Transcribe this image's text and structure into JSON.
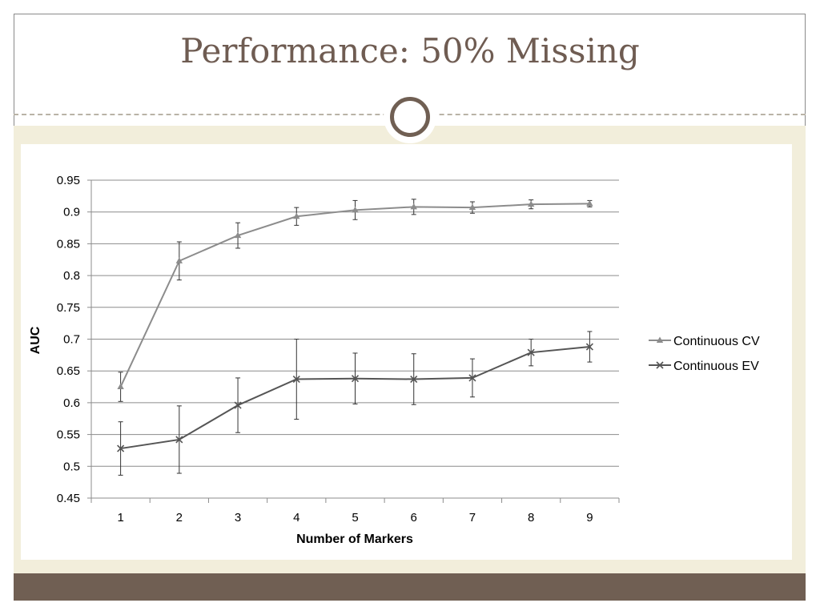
{
  "slide": {
    "title": "Performance: 50% Missing",
    "colors": {
      "brown": "#705f53",
      "band": "#f2eedb",
      "title": "#6f5c52"
    },
    "divider_icon": "circle-ornament-icon"
  },
  "chart_data": {
    "type": "line",
    "title": "",
    "xlabel": "Number of Markers",
    "ylabel": "AUC",
    "categories": [
      "1",
      "2",
      "3",
      "4",
      "5",
      "6",
      "7",
      "8",
      "9"
    ],
    "ylim": [
      0.45,
      0.95
    ],
    "yticks": [
      "0.45",
      "0.5",
      "0.55",
      "0.6",
      "0.65",
      "0.7",
      "0.75",
      "0.8",
      "0.85",
      "0.9",
      "0.95"
    ],
    "grid": true,
    "legend_position": "right",
    "series": [
      {
        "name": "Continuous CV",
        "marker": "triangle",
        "color": "#8c8c8c",
        "values": [
          0.625,
          0.823,
          0.863,
          0.893,
          0.903,
          0.908,
          0.907,
          0.912,
          0.913
        ],
        "error": [
          0.023,
          0.03,
          0.02,
          0.014,
          0.015,
          0.012,
          0.009,
          0.007,
          0.005
        ]
      },
      {
        "name": "Continuous EV",
        "marker": "x",
        "color": "#555555",
        "values": [
          0.528,
          0.542,
          0.596,
          0.637,
          0.638,
          0.637,
          0.639,
          0.679,
          0.688
        ],
        "error": [
          0.042,
          0.053,
          0.043,
          0.063,
          0.04,
          0.04,
          0.03,
          0.021,
          0.024
        ]
      }
    ]
  }
}
